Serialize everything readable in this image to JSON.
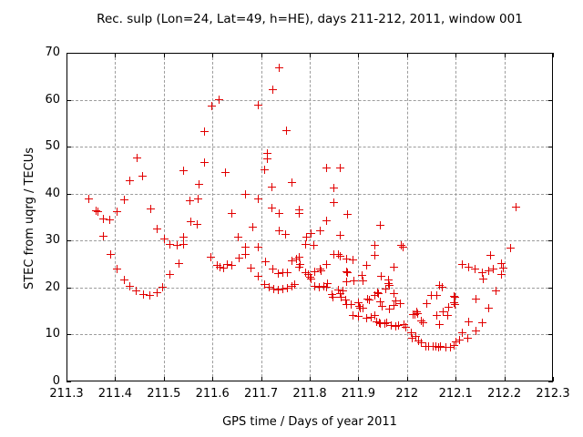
{
  "chart_data": {
    "type": "scatter",
    "title": "Rec. sulp (Lon=24, Lat=49, h=HE), days 211-212, 2011, window 001",
    "xlabel": "GPS time / Days of year 2011",
    "ylabel": "STEC from uqrg / TECUs",
    "xlim": [
      211.3,
      212.3
    ],
    "ylim": [
      0,
      70
    ],
    "x_ticks": [
      211.3,
      211.4,
      211.5,
      211.6,
      211.7,
      211.8,
      211.9,
      212.0,
      212.1,
      212.2,
      212.3
    ],
    "x_tick_labels": [
      "211.3",
      "211.4",
      "211.5",
      "211.6",
      "211.7",
      "211.8",
      "211.9",
      "212",
      "212.1",
      "212.2",
      "212.3"
    ],
    "y_ticks": [
      0,
      10,
      20,
      30,
      40,
      50,
      60,
      70
    ],
    "y_tick_labels": [
      "0",
      "10",
      "20",
      "30",
      "40",
      "50",
      "60",
      "70"
    ],
    "grid": true,
    "grid_color": "#9c9c9c",
    "legend": "none",
    "marker": "plus",
    "marker_color": "#e10000",
    "background_color": "#ffffff",
    "points": [
      [
        211.347,
        38.8
      ],
      [
        211.361,
        36.3
      ],
      [
        211.366,
        36.1
      ],
      [
        211.376,
        34.6
      ],
      [
        211.39,
        34.3
      ],
      [
        211.376,
        30.9
      ],
      [
        211.391,
        26.9
      ],
      [
        211.404,
        36.0
      ],
      [
        211.404,
        23.9
      ],
      [
        211.419,
        38.6
      ],
      [
        211.419,
        21.6
      ],
      [
        211.432,
        20.1
      ],
      [
        211.445,
        19.1
      ],
      [
        211.459,
        18.4
      ],
      [
        211.473,
        18.3
      ],
      [
        211.487,
        18.9
      ],
      [
        211.499,
        20.0
      ],
      [
        211.514,
        22.6
      ],
      [
        211.532,
        25.1
      ],
      [
        211.529,
        28.9
      ],
      [
        211.514,
        29.1
      ],
      [
        211.503,
        30.3
      ],
      [
        211.488,
        32.3
      ],
      [
        211.432,
        42.7
      ],
      [
        211.446,
        47.6
      ],
      [
        211.458,
        43.6
      ],
      [
        211.474,
        36.7
      ],
      [
        211.541,
        44.7
      ],
      [
        211.541,
        30.6
      ],
      [
        211.541,
        29.1
      ],
      [
        211.555,
        38.4
      ],
      [
        211.557,
        34.0
      ],
      [
        211.57,
        33.3
      ],
      [
        211.571,
        38.7
      ],
      [
        211.573,
        41.8
      ],
      [
        211.585,
        53.1
      ],
      [
        211.585,
        46.6
      ],
      [
        211.597,
        26.4
      ],
      [
        211.6,
        58.6
      ],
      [
        211.614,
        59.9
      ],
      [
        211.611,
        24.6
      ],
      [
        211.617,
        24.3
      ],
      [
        211.624,
        24.1
      ],
      [
        211.628,
        44.5
      ],
      [
        211.632,
        24.8
      ],
      [
        211.64,
        35.7
      ],
      [
        211.64,
        24.6
      ],
      [
        211.654,
        30.6
      ],
      [
        211.655,
        26.1
      ],
      [
        211.668,
        39.8
      ],
      [
        211.668,
        28.5
      ],
      [
        211.668,
        27.0
      ],
      [
        211.68,
        24.1
      ],
      [
        211.683,
        32.7
      ],
      [
        211.695,
        38.8
      ],
      [
        211.695,
        28.5
      ],
      [
        211.696,
        22.3
      ],
      [
        211.696,
        58.7
      ],
      [
        211.708,
        20.5
      ],
      [
        211.713,
        48.5
      ],
      [
        211.714,
        47.4
      ],
      [
        211.709,
        45.0
      ],
      [
        211.711,
        25.4
      ],
      [
        211.718,
        19.9
      ],
      [
        211.724,
        41.3
      ],
      [
        211.724,
        36.9
      ],
      [
        211.725,
        62.1
      ],
      [
        211.726,
        23.9
      ],
      [
        211.727,
        19.6
      ],
      [
        211.737,
        19.4
      ],
      [
        211.738,
        66.8
      ],
      [
        211.738,
        35.7
      ],
      [
        211.738,
        31.9
      ],
      [
        211.737,
        22.8
      ],
      [
        211.746,
        23.0
      ],
      [
        211.746,
        19.6
      ],
      [
        211.752,
        31.3
      ],
      [
        211.753,
        53.4
      ],
      [
        211.755,
        23.0
      ],
      [
        211.755,
        19.8
      ],
      [
        211.765,
        42.3
      ],
      [
        211.765,
        25.6
      ],
      [
        211.765,
        20.2
      ],
      [
        211.77,
        20.5
      ],
      [
        211.774,
        25.9
      ],
      [
        211.779,
        36.4
      ],
      [
        211.779,
        35.6
      ],
      [
        211.779,
        26.4
      ],
      [
        211.781,
        24.8
      ],
      [
        211.779,
        24.3
      ],
      [
        211.795,
        30.6
      ],
      [
        211.793,
        29.1
      ],
      [
        211.793,
        23.1
      ],
      [
        211.798,
        22.6
      ],
      [
        211.802,
        22.2
      ],
      [
        211.804,
        21.8
      ],
      [
        211.804,
        31.4
      ],
      [
        211.81,
        28.8
      ],
      [
        211.812,
        23.3
      ],
      [
        211.812,
        20.2
      ],
      [
        211.821,
        19.9
      ],
      [
        211.822,
        32.0
      ],
      [
        211.823,
        23.8
      ],
      [
        211.825,
        23.4
      ],
      [
        211.83,
        20.1
      ],
      [
        211.835,
        45.3
      ],
      [
        211.835,
        34.2
      ],
      [
        211.835,
        24.9
      ],
      [
        211.835,
        19.9
      ],
      [
        211.838,
        20.7
      ],
      [
        211.846,
        18.4
      ],
      [
        211.849,
        17.9
      ],
      [
        211.85,
        41.1
      ],
      [
        211.85,
        38.0
      ],
      [
        211.851,
        27.0
      ],
      [
        211.86,
        27.0
      ],
      [
        211.86,
        19.4
      ],
      [
        211.863,
        45.4
      ],
      [
        211.863,
        31.0
      ],
      [
        211.863,
        26.6
      ],
      [
        211.863,
        18.6
      ],
      [
        211.866,
        17.8
      ],
      [
        211.87,
        19.1
      ],
      [
        211.876,
        26.0
      ],
      [
        211.875,
        17.2
      ],
      [
        211.877,
        23.3
      ],
      [
        211.879,
        23.0
      ],
      [
        211.877,
        21.2
      ],
      [
        211.878,
        35.4
      ],
      [
        211.877,
        16.3
      ],
      [
        211.887,
        16.2
      ],
      [
        211.89,
        25.7
      ],
      [
        211.891,
        21.4
      ],
      [
        211.89,
        13.9
      ],
      [
        211.901,
        16.7
      ],
      [
        211.903,
        15.9
      ],
      [
        211.905,
        15.6
      ],
      [
        211.911,
        15.6
      ],
      [
        211.902,
        13.7
      ],
      [
        211.909,
        22.4
      ],
      [
        211.911,
        21.3
      ],
      [
        211.918,
        24.6
      ],
      [
        211.919,
        17.5
      ],
      [
        211.924,
        17.3
      ],
      [
        211.918,
        13.4
      ],
      [
        211.928,
        13.6
      ],
      [
        211.934,
        28.8
      ],
      [
        211.934,
        26.7
      ],
      [
        211.934,
        18.3
      ],
      [
        211.934,
        13.9
      ],
      [
        211.94,
        18.8
      ],
      [
        211.943,
        18.6
      ],
      [
        211.947,
        33.1
      ],
      [
        211.947,
        16.8
      ],
      [
        211.949,
        15.9
      ],
      [
        211.948,
        22.3
      ],
      [
        211.938,
        12.6
      ],
      [
        211.944,
        12.4
      ],
      [
        211.947,
        12.3
      ],
      [
        211.955,
        12.3
      ],
      [
        211.96,
        12.4
      ],
      [
        211.962,
        21.6
      ],
      [
        211.962,
        20.7
      ],
      [
        211.964,
        20.4
      ],
      [
        211.964,
        15.4
      ],
      [
        211.957,
        19.6
      ],
      [
        211.968,
        11.8
      ],
      [
        211.974,
        16.1
      ],
      [
        211.975,
        24.3
      ],
      [
        211.975,
        18.6
      ],
      [
        211.977,
        17.1
      ],
      [
        211.977,
        11.7
      ],
      [
        211.984,
        11.8
      ],
      [
        211.988,
        16.5
      ],
      [
        211.989,
        28.9
      ],
      [
        211.992,
        28.5
      ],
      [
        211.995,
        12.1
      ],
      [
        211.999,
        11.5
      ],
      [
        212.009,
        10.3
      ],
      [
        212.012,
        9.2
      ],
      [
        212.013,
        14.2
      ],
      [
        212.017,
        14.2
      ],
      [
        212.02,
        9.5
      ],
      [
        212.021,
        14.7
      ],
      [
        212.023,
        14.4
      ],
      [
        212.025,
        8.6
      ],
      [
        212.03,
        12.8
      ],
      [
        212.034,
        12.4
      ],
      [
        212.03,
        8.2
      ],
      [
        212.04,
        7.4
      ],
      [
        212.042,
        16.5
      ],
      [
        212.046,
        7.3
      ],
      [
        212.05,
        18.3
      ],
      [
        212.055,
        7.3
      ],
      [
        212.06,
        7.4
      ],
      [
        212.062,
        18.3
      ],
      [
        212.063,
        14.0
      ],
      [
        212.066,
        7.2
      ],
      [
        212.068,
        20.4
      ],
      [
        212.068,
        12.1
      ],
      [
        212.07,
        7.4
      ],
      [
        212.074,
        20.0
      ],
      [
        212.076,
        14.7
      ],
      [
        212.08,
        7.2
      ],
      [
        212.084,
        13.9
      ],
      [
        212.087,
        15.7
      ],
      [
        212.09,
        7.2
      ],
      [
        212.097,
        18.1
      ],
      [
        212.098,
        7.5
      ],
      [
        212.1,
        17.9
      ],
      [
        212.097,
        16.7
      ],
      [
        212.1,
        16.3
      ],
      [
        212.101,
        8.4
      ],
      [
        212.109,
        8.8
      ],
      [
        212.115,
        24.8
      ],
      [
        212.115,
        10.3
      ],
      [
        212.125,
        9.2
      ],
      [
        212.127,
        24.3
      ],
      [
        212.127,
        12.6
      ],
      [
        212.141,
        23.8
      ],
      [
        212.142,
        17.4
      ],
      [
        212.142,
        10.7
      ],
      [
        212.156,
        23.0
      ],
      [
        212.156,
        12.4
      ],
      [
        212.157,
        21.7
      ],
      [
        212.168,
        23.5
      ],
      [
        212.169,
        15.5
      ],
      [
        212.172,
        26.7
      ],
      [
        212.179,
        23.8
      ],
      [
        212.184,
        19.2
      ],
      [
        212.195,
        22.6
      ],
      [
        212.196,
        25.1
      ],
      [
        212.198,
        24.1
      ],
      [
        212.213,
        28.3
      ],
      [
        212.226,
        37.0
      ]
    ]
  }
}
